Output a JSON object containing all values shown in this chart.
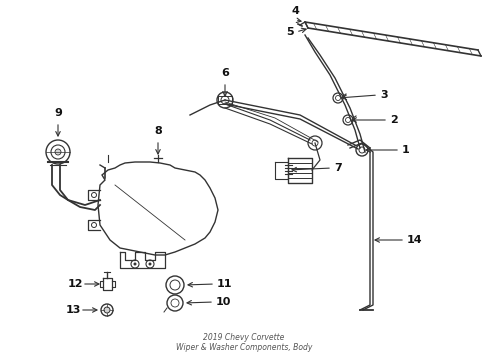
{
  "title": "2019 Chevy Corvette\nWiper & Washer Components, Body",
  "background_color": "#ffffff",
  "line_color": "#333333",
  "label_color": "#111111",
  "figsize": [
    4.89,
    3.6
  ],
  "dpi": 100
}
